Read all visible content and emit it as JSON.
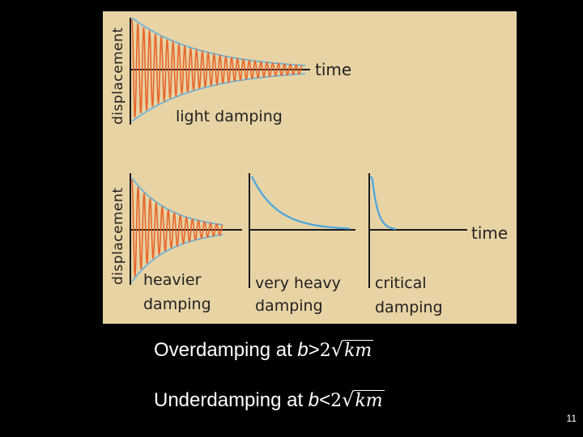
{
  "figure": {
    "top_panel": {
      "y_axis_label": "displacement",
      "x_axis_label": "time",
      "curve_label": "light damping"
    },
    "bottom_panel": {
      "y_axis_label": "displacement",
      "x_axis_label": "time",
      "curves": [
        {
          "label_line1": "heavier",
          "label_line2": "damping"
        },
        {
          "label_line1": "very heavy",
          "label_line2": "damping"
        },
        {
          "label_line1": "critical",
          "label_line2": "damping"
        }
      ]
    },
    "colors": {
      "background": "#e7d3a4",
      "oscillation": "#e8642a",
      "envelope": "#5aaee0",
      "decay": "#4aa4e0",
      "axis": "#1a1a1a"
    }
  },
  "equations": {
    "overdamping": {
      "prefix": "Overdamping at ",
      "variable": "b",
      "relation": ">",
      "coefficient": "2",
      "radicand": "km"
    },
    "underdamping": {
      "prefix": "Underdamping at ",
      "variable": "b",
      "relation": "<",
      "coefficient": "2",
      "radicand": "km"
    }
  },
  "page_number": "11"
}
